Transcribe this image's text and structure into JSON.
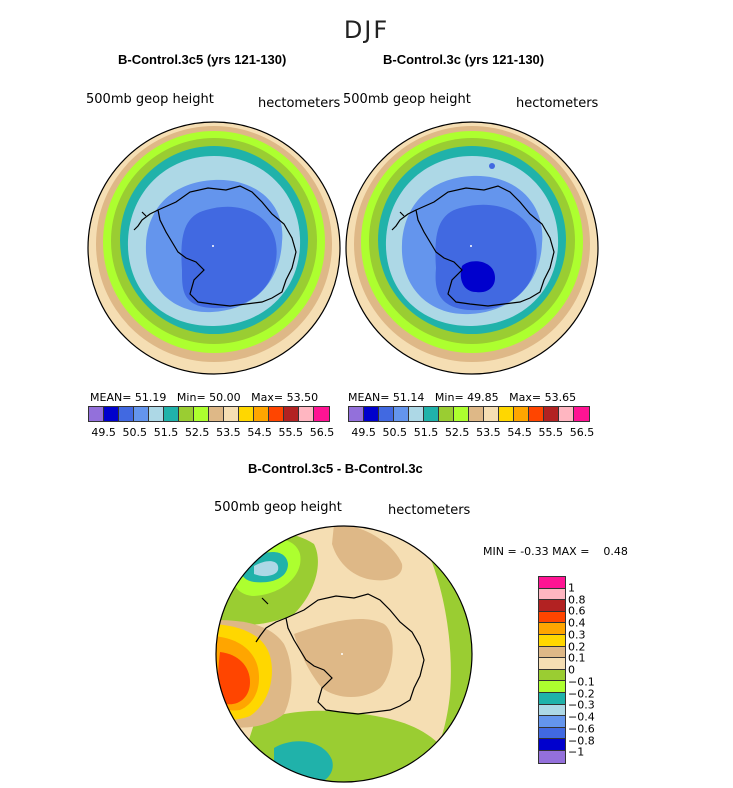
{
  "figure": {
    "season": "DJF",
    "variable": "500mb geop height",
    "units": "hectometers"
  },
  "panels": {
    "left": {
      "title": "B-Control.3c5 (yrs 121-130)",
      "stats": {
        "mean_label": "MEAN=",
        "mean": "51.19",
        "min_label": "Min=",
        "min": "50.00",
        "max_label": "Max=",
        "max": "53.50"
      }
    },
    "right": {
      "title": "B-Control.3c (yrs 121-130)",
      "stats": {
        "mean_label": "MEAN=",
        "mean": "51.14",
        "min_label": "Min=",
        "min": "49.85",
        "max_label": "Max=",
        "max": "53.65"
      }
    },
    "diff": {
      "title": "B-Control.3c5 - B-Control.3c",
      "stats": {
        "min_label": "MIN =",
        "min": "-0.33",
        "max_label": "MAX =",
        "max": "0.48"
      }
    }
  },
  "chart_data": [
    {
      "type": "heatmap",
      "projection": "south polar stereographic",
      "title": "B-Control.3c5 (yrs 121-130)",
      "variable": "500mb geop height",
      "units": "hectometers",
      "mean": 51.19,
      "min": 50.0,
      "max": 53.5,
      "levels": [
        49.5,
        50,
        50.5,
        51,
        51.5,
        52,
        52.5,
        53,
        53.5,
        54,
        54.5,
        55,
        55.5,
        56,
        56.5
      ],
      "level_labels": [
        "49.5",
        "50.5",
        "51.5",
        "52.5",
        "53.5",
        "54.5",
        "55.5",
        "56.5"
      ],
      "colors": [
        "#9370db",
        "#0000cd",
        "#4169e1",
        "#6495ed",
        "#add8e6",
        "#20b2aa",
        "#9acd32",
        "#adff2f",
        "#deb887",
        "#f5deb3",
        "#ffd700",
        "#ffa500",
        "#ff4500",
        "#b22222",
        "#ffb6c1",
        "#ff1493"
      ]
    },
    {
      "type": "heatmap",
      "projection": "south polar stereographic",
      "title": "B-Control.3c (yrs 121-130)",
      "variable": "500mb geop height",
      "units": "hectometers",
      "mean": 51.14,
      "min": 49.85,
      "max": 53.65,
      "levels": [
        49.5,
        50,
        50.5,
        51,
        51.5,
        52,
        52.5,
        53,
        53.5,
        54,
        54.5,
        55,
        55.5,
        56,
        56.5
      ],
      "level_labels": [
        "49.5",
        "50.5",
        "51.5",
        "52.5",
        "53.5",
        "54.5",
        "55.5",
        "56.5"
      ],
      "colors": [
        "#9370db",
        "#0000cd",
        "#4169e1",
        "#6495ed",
        "#add8e6",
        "#20b2aa",
        "#9acd32",
        "#adff2f",
        "#deb887",
        "#f5deb3",
        "#ffd700",
        "#ffa500",
        "#ff4500",
        "#b22222",
        "#ffb6c1",
        "#ff1493"
      ]
    },
    {
      "type": "heatmap",
      "projection": "south polar stereographic",
      "title": "B-Control.3c5 - B-Control.3c",
      "variable": "500mb geop height",
      "units": "hectometers",
      "min": -0.33,
      "max": 0.48,
      "levels": [
        -1,
        -0.8,
        -0.6,
        -0.4,
        -0.3,
        -0.2,
        -0.1,
        0,
        0.1,
        0.2,
        0.3,
        0.4,
        0.6,
        0.8,
        1
      ],
      "level_labels": [
        "1",
        "0.8",
        "0.6",
        "0.4",
        "0.3",
        "0.2",
        "0.1",
        "0",
        "−0.1",
        "−0.2",
        "−0.3",
        "−0.4",
        "−0.6",
        "−0.8",
        "−1"
      ],
      "colors": [
        "#ff1493",
        "#ffb6c1",
        "#b22222",
        "#ff4500",
        "#ffa500",
        "#ffd700",
        "#deb887",
        "#f5deb3",
        "#9acd32",
        "#adff2f",
        "#20b2aa",
        "#add8e6",
        "#6495ed",
        "#4169e1",
        "#0000cd",
        "#9370db"
      ]
    }
  ]
}
